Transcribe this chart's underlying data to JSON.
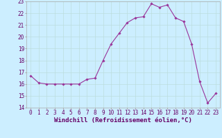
{
  "x": [
    0,
    1,
    2,
    3,
    4,
    5,
    6,
    7,
    8,
    9,
    10,
    11,
    12,
    13,
    14,
    15,
    16,
    17,
    18,
    19,
    20,
    21,
    22,
    23
  ],
  "y": [
    16.7,
    16.1,
    16.0,
    16.0,
    16.0,
    16.0,
    16.0,
    16.4,
    16.5,
    18.0,
    19.4,
    20.3,
    21.2,
    21.6,
    21.7,
    22.8,
    22.5,
    22.7,
    21.6,
    21.3,
    19.4,
    16.2,
    14.4,
    15.2
  ],
  "line_color": "#993399",
  "marker": "D",
  "marker_size": 1.8,
  "background_color": "#cceeff",
  "grid_color": "#bbdddd",
  "xlabel": "Windchill (Refroidissement éolien,°C)",
  "xlim": [
    -0.5,
    23.5
  ],
  "ylim": [
    14,
    23
  ],
  "yticks": [
    14,
    15,
    16,
    17,
    18,
    19,
    20,
    21,
    22,
    23
  ],
  "xticks": [
    0,
    1,
    2,
    3,
    4,
    5,
    6,
    7,
    8,
    9,
    10,
    11,
    12,
    13,
    14,
    15,
    16,
    17,
    18,
    19,
    20,
    21,
    22,
    23
  ],
  "tick_fontsize": 5.5,
  "xlabel_fontsize": 6.5,
  "line_width": 0.8,
  "spine_color": "#aaaaaa"
}
